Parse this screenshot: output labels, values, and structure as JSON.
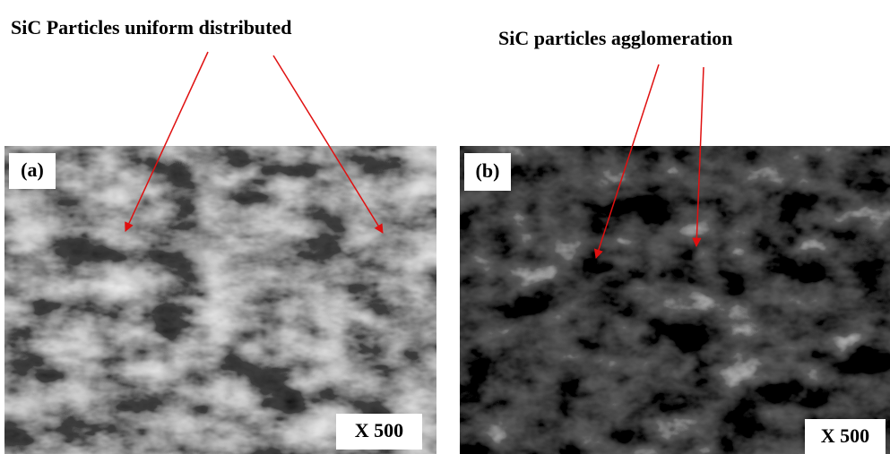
{
  "panels": [
    {
      "label": "(a)",
      "magnification": "X 500",
      "annotation": "SiC Particles uniform distributed"
    },
    {
      "label": "(b)",
      "magnification": "X 500",
      "annotation": "SiC particles agglomeration"
    }
  ]
}
